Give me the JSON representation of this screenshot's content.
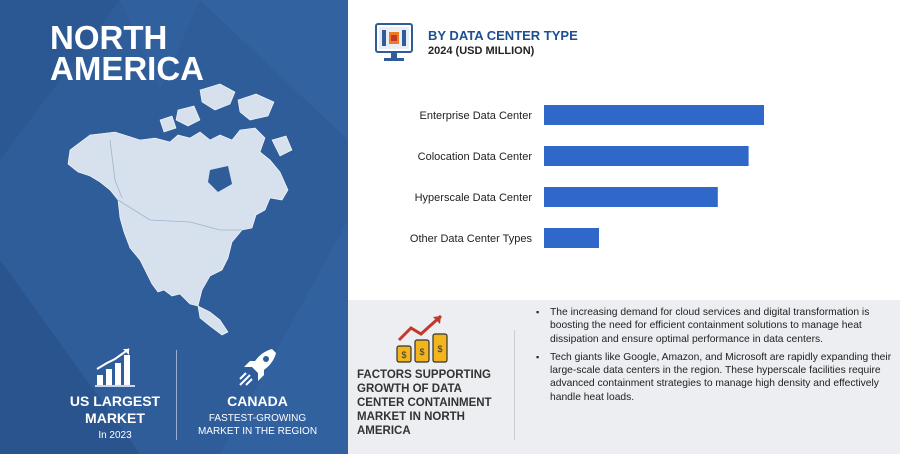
{
  "region": {
    "title": "NORTH AMERICA"
  },
  "stats": {
    "largest": {
      "title": "US LARGEST MARKET",
      "sub": "In 2023",
      "icon": "bar-growth-icon"
    },
    "fastest": {
      "title": "CANADA",
      "sub": "FASTEST-GROWING MARKET IN THE REGION",
      "icon": "rocket-icon"
    }
  },
  "chart_header": {
    "title": "BY DATA CENTER TYPE",
    "subtitle": "2024 (USD MILLION)",
    "icon": "data-center-monitor-icon"
  },
  "colors": {
    "panel": "#2f5d9a",
    "bar": "#2f68c8",
    "map": "#d7e1ee",
    "accent": "#1d4f91",
    "bottom_panel": "#eceef1"
  },
  "chart_data": {
    "type": "bar",
    "orientation": "horizontal",
    "categories": [
      "Enterprise Data Center",
      "Colocation Data Center",
      "Hyperscale Data Center",
      "Other Data Center Types"
    ],
    "values": [
      100,
      93,
      79,
      25
    ],
    "axis": "none",
    "grid": false
  },
  "factors": {
    "title": "FACTORS SUPPORTING GROWTH OF DATA CENTER CONTAINMENT MARKET IN NORTH AMERICA",
    "icon": "coins-growth-icon",
    "bullets": [
      "The increasing demand for cloud services and digital transformation is boosting the need for efficient containment solutions to manage heat dissipation and ensure optimal performance in data centers.",
      "Tech giants like Google, Amazon, and Microsoft are rapidly expanding their large-scale data centers in the region. These hyperscale facilities require advanced containment strategies to manage high density and effectively handle heat loads."
    ]
  }
}
